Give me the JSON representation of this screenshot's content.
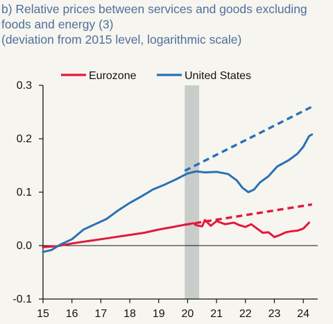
{
  "chart_data": {
    "type": "line",
    "title_lines": [
      "b) Relative prices between services and goods excluding",
      "foods and energy (3)",
      "(deviation from 2015 level, logarithmic scale)"
    ],
    "xlabel": "",
    "ylabel": "",
    "xlim": [
      15,
      24.5
    ],
    "ylim": [
      -0.1,
      0.3
    ],
    "x_ticks": [
      15,
      16,
      17,
      18,
      19,
      20,
      21,
      22,
      23,
      24
    ],
    "x_tick_labels": [
      "15",
      "16",
      "17",
      "18",
      "19",
      "20",
      "21",
      "22",
      "23",
      "24"
    ],
    "y_ticks": [
      0.3,
      0.2,
      0.1,
      0.0,
      -0.1
    ],
    "y_tick_labels": [
      "0.3",
      "0.2",
      "0.1",
      "0.0",
      "-0.1"
    ],
    "grid": false,
    "legend_position": "top",
    "shaded_period": {
      "x": [
        19.9,
        20.4
      ],
      "color": "#c9cdc9"
    },
    "series": [
      {
        "name": "Eurozone",
        "color": "#e3183c",
        "dashed": false,
        "points": [
          [
            15.0,
            -0.003
          ],
          [
            15.5,
            -0.001
          ],
          [
            16.0,
            0.004
          ],
          [
            16.5,
            0.008
          ],
          [
            17.0,
            0.012
          ],
          [
            17.5,
            0.016
          ],
          [
            18.0,
            0.02
          ],
          [
            18.5,
            0.024
          ],
          [
            19.0,
            0.03
          ],
          [
            19.5,
            0.035
          ],
          [
            20.0,
            0.04
          ],
          [
            20.2,
            0.042
          ],
          [
            20.3,
            0.038
          ],
          [
            20.5,
            0.036
          ],
          [
            20.6,
            0.048
          ],
          [
            20.8,
            0.037
          ],
          [
            21.0,
            0.046
          ],
          [
            21.3,
            0.04
          ],
          [
            21.6,
            0.043
          ],
          [
            21.8,
            0.038
          ],
          [
            22.0,
            0.035
          ],
          [
            22.2,
            0.04
          ],
          [
            22.4,
            0.032
          ],
          [
            22.6,
            0.024
          ],
          [
            22.8,
            0.025
          ],
          [
            23.0,
            0.016
          ],
          [
            23.2,
            0.02
          ],
          [
            23.4,
            0.025
          ],
          [
            23.6,
            0.027
          ],
          [
            23.8,
            0.028
          ],
          [
            24.0,
            0.032
          ],
          [
            24.2,
            0.043
          ]
        ]
      },
      {
        "name": "Eurozone trend",
        "color": "#e3183c",
        "dashed": true,
        "points": [
          [
            19.9,
            0.039
          ],
          [
            24.3,
            0.077
          ]
        ]
      },
      {
        "name": "United States",
        "color": "#2a70b4",
        "dashed": false,
        "points": [
          [
            15.0,
            -0.012
          ],
          [
            15.3,
            -0.008
          ],
          [
            15.6,
            0.002
          ],
          [
            16.0,
            0.012
          ],
          [
            16.4,
            0.03
          ],
          [
            16.8,
            0.04
          ],
          [
            17.2,
            0.05
          ],
          [
            17.6,
            0.066
          ],
          [
            18.0,
            0.08
          ],
          [
            18.4,
            0.092
          ],
          [
            18.8,
            0.105
          ],
          [
            19.2,
            0.114
          ],
          [
            19.6,
            0.124
          ],
          [
            20.0,
            0.135
          ],
          [
            20.3,
            0.139
          ],
          [
            20.6,
            0.137
          ],
          [
            21.0,
            0.138
          ],
          [
            21.4,
            0.134
          ],
          [
            21.7,
            0.122
          ],
          [
            21.9,
            0.108
          ],
          [
            22.1,
            0.1
          ],
          [
            22.3,
            0.105
          ],
          [
            22.5,
            0.118
          ],
          [
            22.8,
            0.13
          ],
          [
            23.1,
            0.148
          ],
          [
            23.5,
            0.16
          ],
          [
            23.8,
            0.172
          ],
          [
            24.0,
            0.185
          ],
          [
            24.2,
            0.205
          ],
          [
            24.3,
            0.208
          ]
        ]
      },
      {
        "name": "United States trend",
        "color": "#2a70b4",
        "dashed": true,
        "points": [
          [
            19.9,
            0.14
          ],
          [
            24.3,
            0.26
          ]
        ]
      }
    ],
    "legend": [
      {
        "label": "Eurozone",
        "color": "#e3183c"
      },
      {
        "label": "United States",
        "color": "#2a70b4"
      }
    ]
  }
}
